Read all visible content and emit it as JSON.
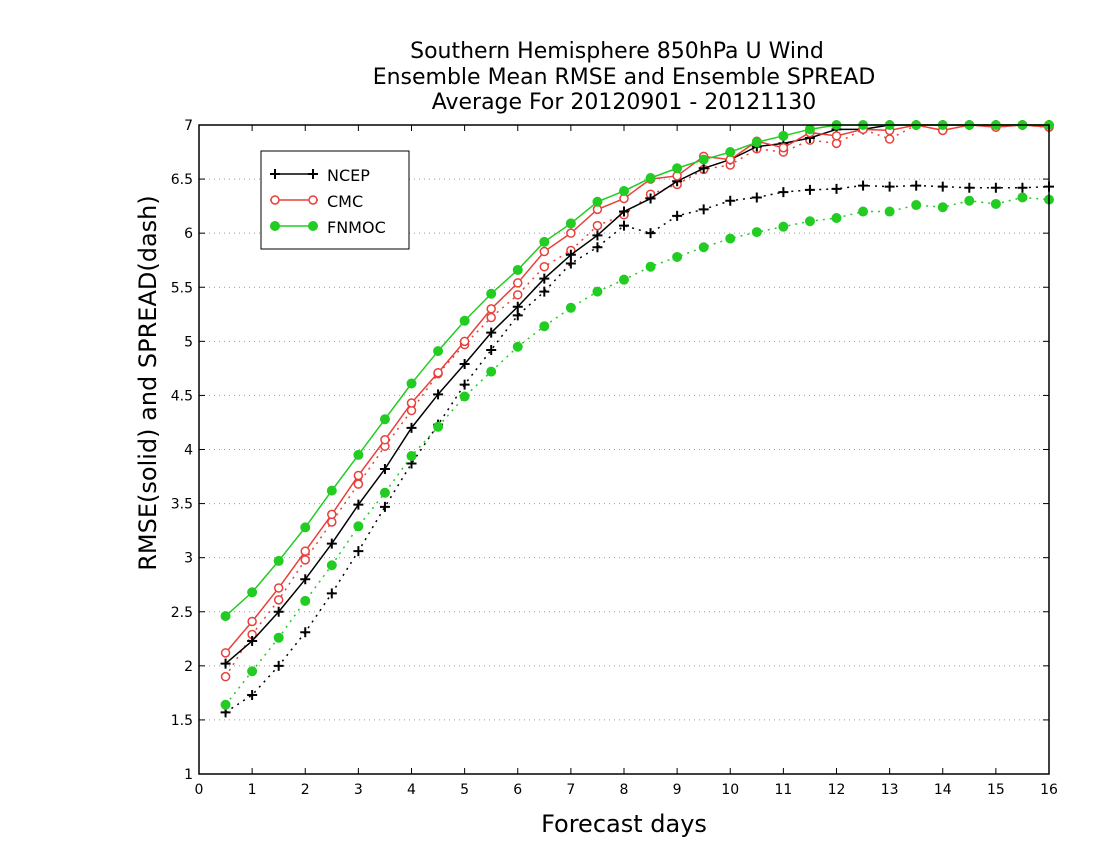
{
  "chart_data": {
    "type": "line",
    "title_lines": [
      "Southern Hemisphere 850hPa U Wind",
      "Ensemble Mean RMSE and Ensemble SPREAD",
      "Average For 20120901 - 20121130"
    ],
    "xlabel": "Forecast days",
    "ylabel": "RMSE(solid) and SPREAD(dash)",
    "xlim": [
      0,
      16
    ],
    "ylim": [
      1,
      7
    ],
    "xticks": [
      0,
      1,
      2,
      3,
      4,
      5,
      6,
      7,
      8,
      9,
      10,
      11,
      12,
      13,
      14,
      15,
      16
    ],
    "yticks": [
      1,
      1.5,
      2,
      2.5,
      3,
      3.5,
      4,
      4.5,
      5,
      5.5,
      6,
      6.5,
      7
    ],
    "grid": "horizontal dotted",
    "legend_position": "top-left",
    "legend": [
      "NCEP",
      "CMC",
      "FNMOC"
    ],
    "series_style": {
      "NCEP": {
        "color": "#000000",
        "marker": "plus"
      },
      "CMC": {
        "color": "#e8403a",
        "marker": "open-circle"
      },
      "FNMOC": {
        "color": "#22cc22",
        "marker": "filled-circle"
      }
    },
    "series": [
      {
        "name": "NCEP",
        "kind": "RMSE",
        "x": [
          0.5,
          1,
          1.5,
          2,
          2.5,
          3,
          3.5,
          4,
          4.5,
          5,
          5.5,
          6,
          6.5,
          7,
          7.5,
          8,
          8.5,
          9,
          9.5,
          10,
          10.5,
          11,
          11.5,
          12,
          12.5,
          13,
          13.5,
          14,
          14.5,
          15,
          15.5,
          16
        ],
        "y": [
          2.02,
          2.23,
          2.5,
          2.8,
          3.13,
          3.49,
          3.82,
          4.2,
          4.51,
          4.79,
          5.08,
          5.32,
          5.58,
          5.8,
          5.98,
          6.2,
          6.32,
          6.48,
          6.6,
          6.68,
          6.8,
          6.83,
          6.88,
          6.96,
          6.96,
          7.0,
          7.0,
          7.0,
          7.0,
          7.0,
          7.0,
          7.0
        ]
      },
      {
        "name": "NCEP",
        "kind": "SPREAD",
        "x": [
          0.5,
          1,
          1.5,
          2,
          2.5,
          3,
          3.5,
          4,
          4.5,
          5,
          5.5,
          6,
          6.5,
          7,
          7.5,
          8,
          8.5,
          9,
          9.5,
          10,
          10.5,
          11,
          11.5,
          12,
          12.5,
          13,
          13.5,
          14,
          14.5,
          15,
          15.5,
          16
        ],
        "y": [
          1.57,
          1.73,
          2.0,
          2.31,
          2.67,
          3.06,
          3.47,
          3.87,
          4.23,
          4.6,
          4.92,
          5.24,
          5.46,
          5.72,
          5.87,
          6.07,
          6.0,
          6.16,
          6.22,
          6.3,
          6.33,
          6.38,
          6.4,
          6.41,
          6.44,
          6.43,
          6.44,
          6.43,
          6.42,
          6.42,
          6.42,
          6.43
        ]
      },
      {
        "name": "CMC",
        "kind": "RMSE",
        "x": [
          0.5,
          1,
          1.5,
          2,
          2.5,
          3,
          3.5,
          4,
          4.5,
          5,
          5.5,
          6,
          6.5,
          7,
          7.5,
          8,
          8.5,
          9,
          9.5,
          10,
          10.5,
          11,
          11.5,
          12,
          12.5,
          13,
          13.5,
          14,
          14.5,
          15,
          15.5,
          16
        ],
        "y": [
          2.12,
          2.41,
          2.72,
          3.06,
          3.4,
          3.76,
          4.09,
          4.43,
          4.71,
          5.0,
          5.3,
          5.54,
          5.83,
          6.0,
          6.22,
          6.32,
          6.5,
          6.53,
          6.71,
          6.68,
          6.85,
          6.79,
          6.93,
          6.9,
          6.96,
          6.95,
          7.0,
          6.95,
          7.0,
          6.98,
          7.0,
          6.98
        ]
      },
      {
        "name": "CMC",
        "kind": "SPREAD",
        "x": [
          0.5,
          1,
          1.5,
          2,
          2.5,
          3,
          3.5,
          4,
          4.5,
          5,
          5.5,
          6,
          6.5,
          7,
          7.5,
          8,
          8.5,
          9,
          9.5,
          10,
          10.5,
          11,
          11.5,
          12,
          12.5,
          13,
          13.5,
          14,
          14.5,
          15,
          15.5,
          16
        ],
        "y": [
          1.9,
          2.29,
          2.61,
          2.98,
          3.33,
          3.68,
          4.03,
          4.36,
          4.7,
          4.97,
          5.22,
          5.43,
          5.69,
          5.84,
          6.07,
          6.17,
          6.36,
          6.45,
          6.59,
          6.63,
          6.78,
          6.75,
          6.86,
          6.83,
          6.96,
          6.87,
          7.0,
          6.95,
          7.0,
          6.98,
          7.0,
          6.98
        ]
      },
      {
        "name": "FNMOC",
        "kind": "RMSE",
        "x": [
          0.5,
          1,
          1.5,
          2,
          2.5,
          3,
          3.5,
          4,
          4.5,
          5,
          5.5,
          6,
          6.5,
          7,
          7.5,
          8,
          8.5,
          9,
          9.5,
          10,
          10.5,
          11,
          11.5,
          12,
          12.5,
          13,
          13.5,
          14,
          14.5,
          15,
          15.5,
          16
        ],
        "y": [
          2.46,
          2.68,
          2.97,
          3.28,
          3.62,
          3.95,
          4.28,
          4.61,
          4.91,
          5.19,
          5.44,
          5.66,
          5.92,
          6.09,
          6.29,
          6.39,
          6.51,
          6.6,
          6.68,
          6.75,
          6.84,
          6.9,
          6.96,
          7.0,
          7.0,
          7.0,
          7.0,
          7.0,
          7.0,
          7.0,
          7.0,
          7.0
        ]
      },
      {
        "name": "FNMOC",
        "kind": "SPREAD",
        "x": [
          0.5,
          1,
          1.5,
          2,
          2.5,
          3,
          3.5,
          4,
          4.5,
          5,
          5.5,
          6,
          6.5,
          7,
          7.5,
          8,
          8.5,
          9,
          9.5,
          10,
          10.5,
          11,
          11.5,
          12,
          12.5,
          13,
          13.5,
          14,
          14.5,
          15,
          15.5,
          16
        ],
        "y": [
          1.64,
          1.95,
          2.26,
          2.6,
          2.93,
          3.29,
          3.6,
          3.94,
          4.21,
          4.49,
          4.72,
          4.95,
          5.14,
          5.31,
          5.46,
          5.57,
          5.69,
          5.78,
          5.87,
          5.95,
          6.01,
          6.06,
          6.11,
          6.14,
          6.2,
          6.2,
          6.26,
          6.24,
          6.3,
          6.27,
          6.33,
          6.31
        ]
      }
    ]
  }
}
